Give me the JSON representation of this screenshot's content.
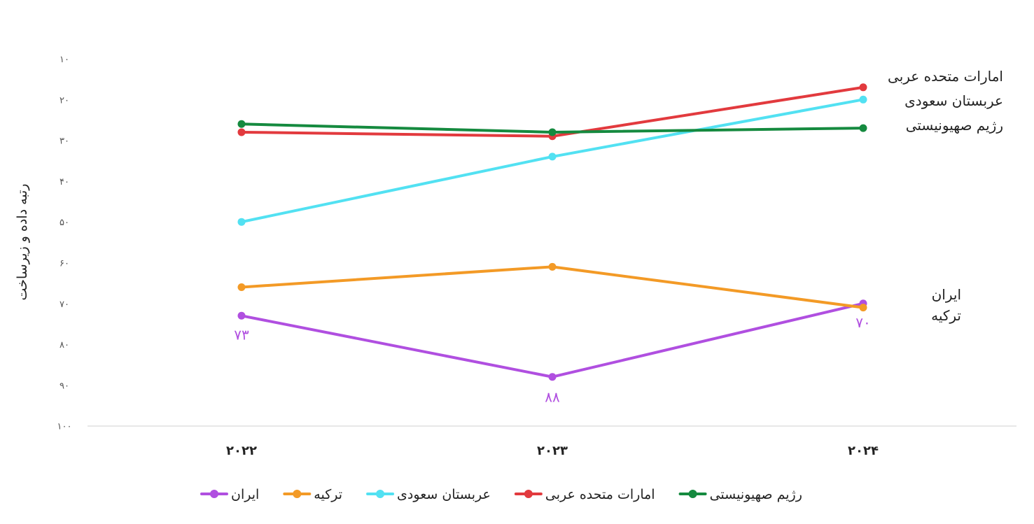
{
  "chart_data": {
    "type": "line",
    "ylabel": "رتبه داده و زیرساخت",
    "x": [
      "۲۰۲۲",
      "۲۰۲۳",
      "۲۰۲۴"
    ],
    "y_ticks": [
      "۱۰",
      "۲۰",
      "۳۰",
      "۴۰",
      "۵۰",
      "۶۰",
      "۷۰",
      "۸۰",
      "۹۰",
      "۱۰۰"
    ],
    "ylim": [
      10,
      100
    ],
    "y_inverted": true,
    "grid": false,
    "legend_position": "bottom",
    "series": [
      {
        "name": "ایران",
        "color": "#b04fe0",
        "values": [
          73,
          88,
          70
        ]
      },
      {
        "name": "ترکیه",
        "color": "#f39a26",
        "values": [
          66,
          61,
          71
        ]
      },
      {
        "name": "عربستان سعودی",
        "color": "#52e1f2",
        "values": [
          50,
          34,
          20
        ]
      },
      {
        "name": "امارات متحده عربی",
        "color": "#e23a3e",
        "values": [
          28,
          29,
          17
        ]
      },
      {
        "name": "رژیم صهیونیستی",
        "color": "#158a3f",
        "values": [
          26,
          28,
          27
        ]
      }
    ],
    "data_labels": [
      {
        "series": "ایران",
        "index": 0,
        "text": "۷۳"
      },
      {
        "series": "ایران",
        "index": 1,
        "text": "۸۸"
      },
      {
        "series": "ایران",
        "index": 2,
        "text": "۷۰"
      }
    ],
    "end_labels_top": [
      "امارات متحده عربی",
      "عربستان سعودی",
      "رژیم صهیونیستی"
    ],
    "end_labels_bottom": [
      "ایران",
      "ترکیه"
    ]
  }
}
